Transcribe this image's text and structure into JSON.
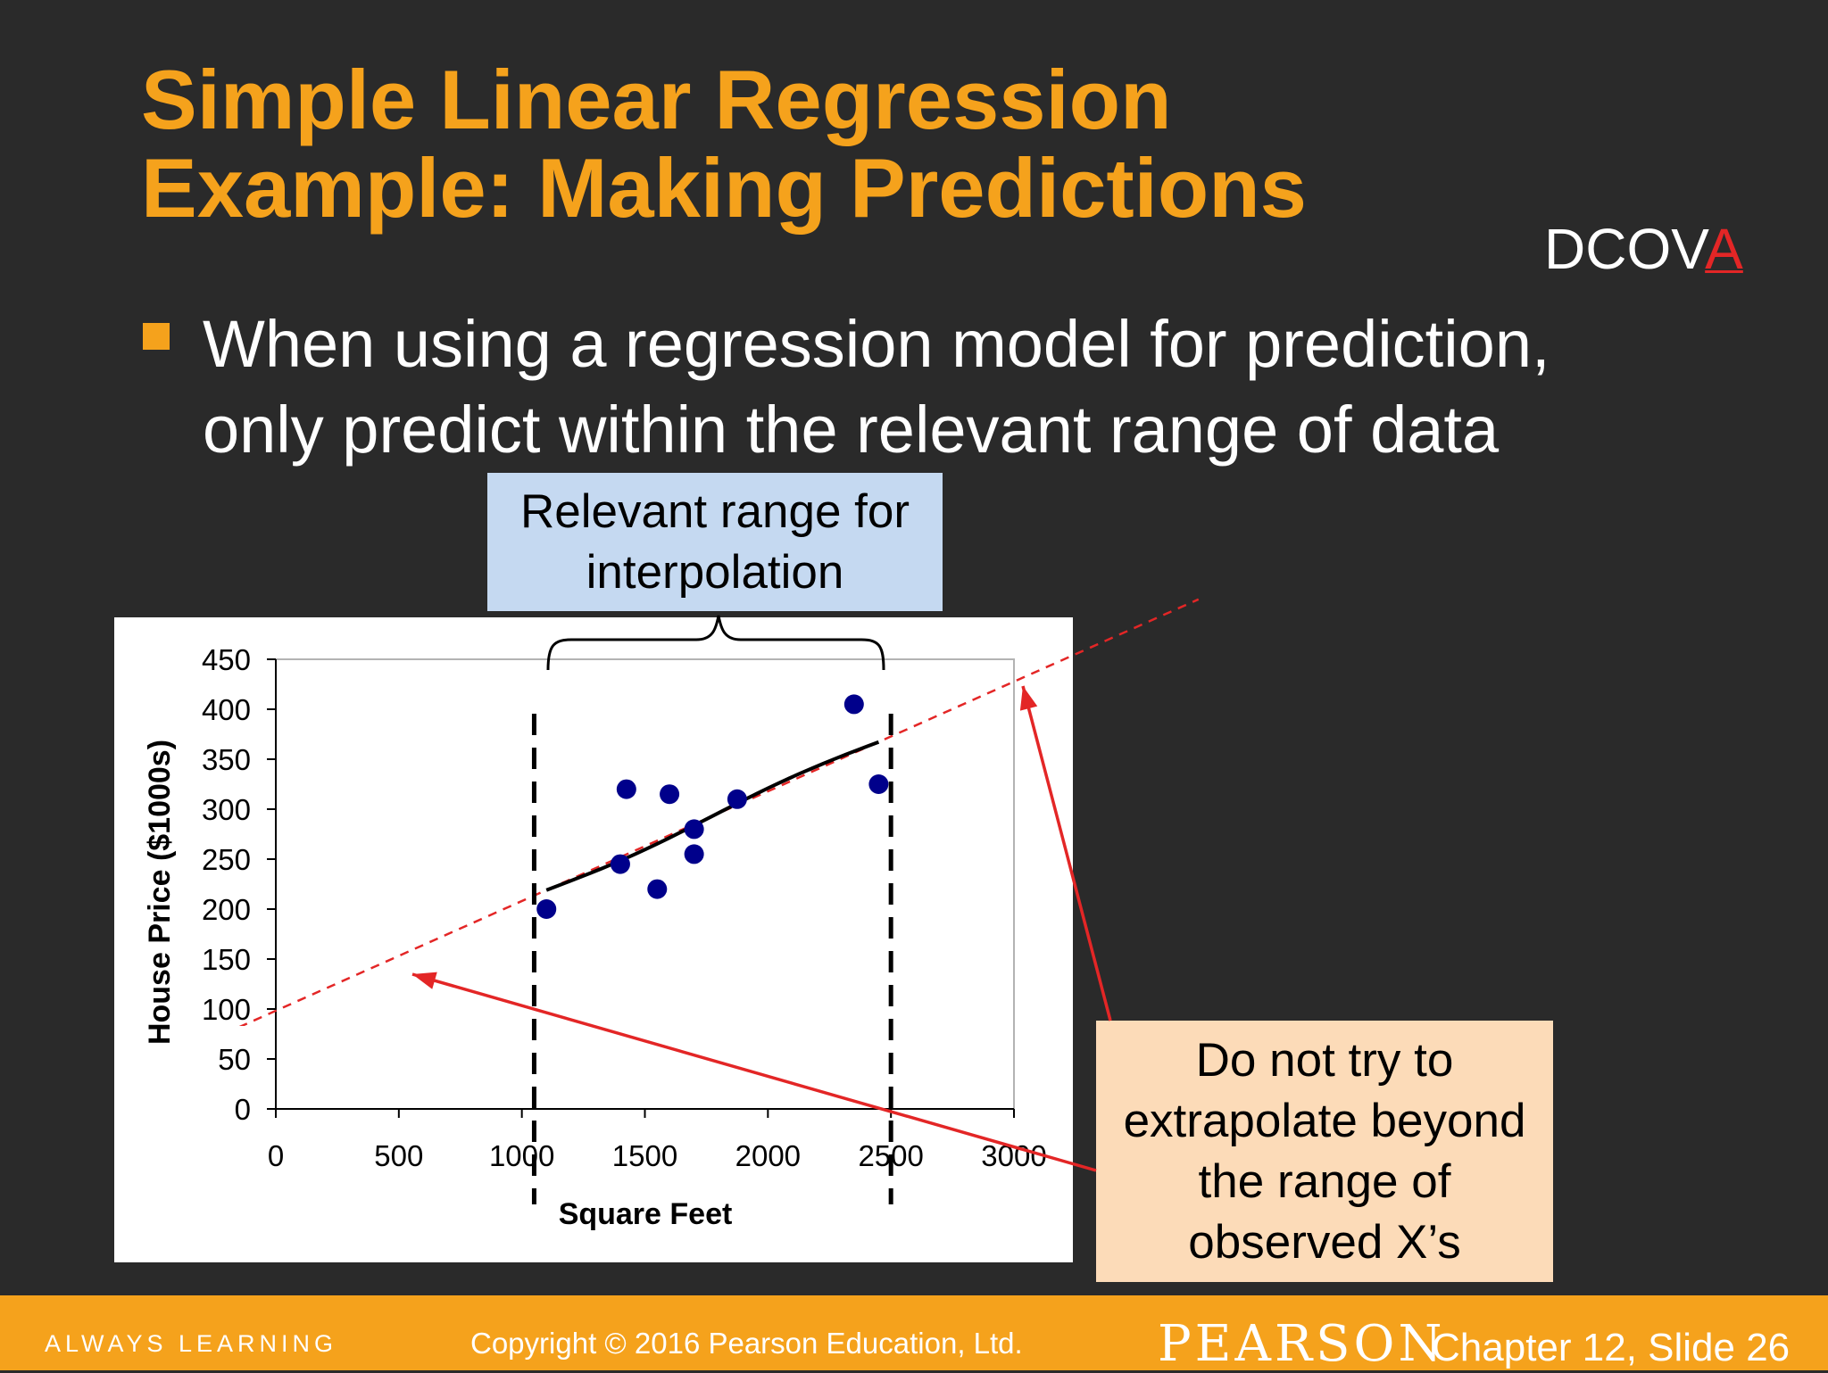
{
  "slide": {
    "title_line1": "Simple Linear Regression",
    "title_line2": "Example:  Making Predictions",
    "dcova_prefix": "DCOV",
    "dcova_highlight": "A",
    "bullet_line1": "When using a regression model for prediction,",
    "bullet_line2": "only predict within the relevant range of data",
    "callout_interpolation": "Relevant range for interpolation",
    "callout_extrapolation": "Do not try to extrapolate beyond the range of observed X’s"
  },
  "footer": {
    "tagline": "ALWAYS LEARNING",
    "copyright": "Copyright © 2016 Pearson Education, Ltd.",
    "brand": "PEARSON",
    "slide_ref": "Chapter 12, Slide 26"
  },
  "colors": {
    "title": "#f5a21c",
    "point": "#00008b",
    "extrapolation": "#e32626"
  },
  "chart_data": {
    "type": "scatter",
    "title": "",
    "xlabel": "Square Feet",
    "ylabel": "House Price ($1000s)",
    "xlim": [
      0,
      3000
    ],
    "ylim": [
      0,
      450
    ],
    "xticks": [
      0,
      500,
      1000,
      1500,
      2000,
      2500,
      3000
    ],
    "yticks": [
      0,
      50,
      100,
      150,
      200,
      250,
      300,
      350,
      400,
      450
    ],
    "points": [
      {
        "x": 1100,
        "y": 200
      },
      {
        "x": 1400,
        "y": 245
      },
      {
        "x": 1425,
        "y": 320
      },
      {
        "x": 1550,
        "y": 220
      },
      {
        "x": 1600,
        "y": 315
      },
      {
        "x": 1700,
        "y": 280
      },
      {
        "x": 1700,
        "y": 255
      },
      {
        "x": 1875,
        "y": 310
      },
      {
        "x": 2350,
        "y": 405
      },
      {
        "x": 2450,
        "y": 325
      }
    ],
    "regression": {
      "intercept": 98.25,
      "slope": 0.1098,
      "fit_x_range": [
        1100,
        2450
      ]
    },
    "relevant_range": [
      1050,
      2500
    ],
    "extrapolation_x_range": [
      -150,
      3750
    ]
  }
}
